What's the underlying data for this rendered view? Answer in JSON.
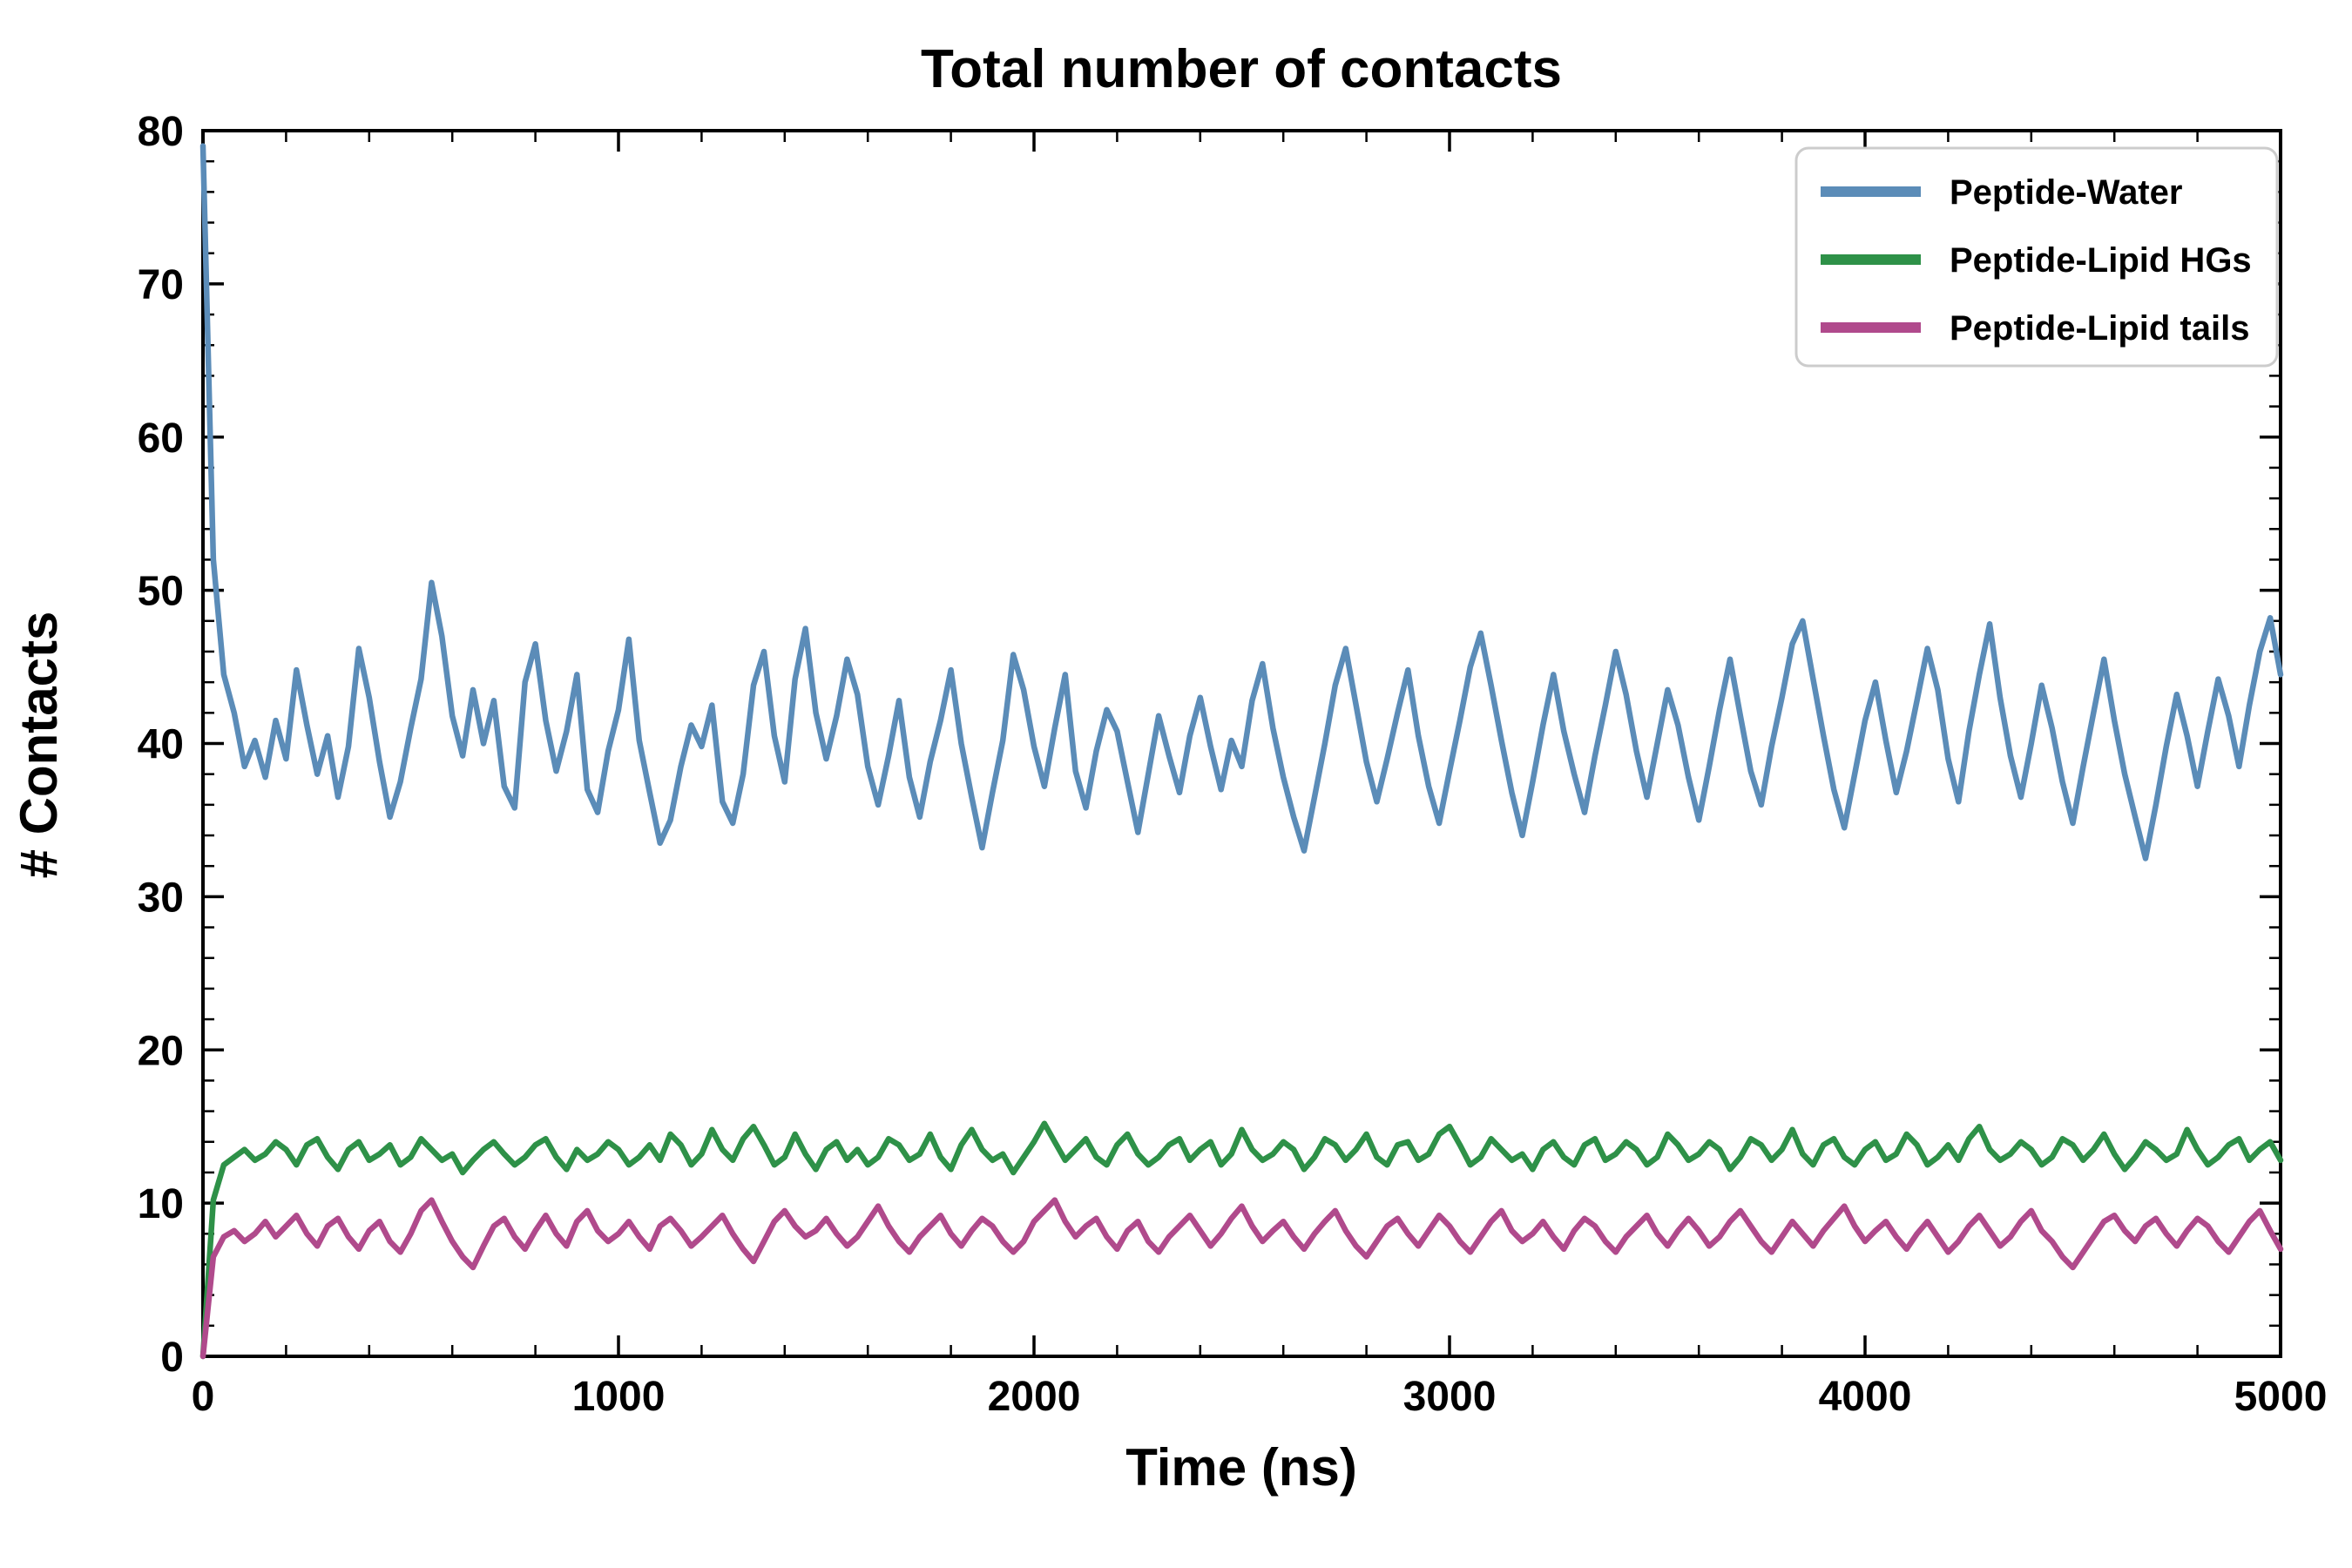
{
  "chart_data": {
    "type": "line",
    "title": "Total number of contacts",
    "xlabel": "Time (ns)",
    "ylabel": "# Contacts",
    "xlim": [
      0,
      5000
    ],
    "ylim": [
      0,
      80
    ],
    "xticks": [
      0,
      1000,
      2000,
      3000,
      4000,
      5000
    ],
    "yticks": [
      0,
      10,
      20,
      30,
      40,
      50,
      60,
      70,
      80
    ],
    "x_minor_step": 200,
    "y_minor_step": 2,
    "grid": false,
    "legend_position": "upper right",
    "x_step": 25,
    "frame_color": "#000000",
    "series": [
      {
        "name": "Peptide-Water",
        "color": "#5b8cb8",
        "values": [
          79,
          52,
          44.5,
          42,
          38.5,
          40.2,
          37.8,
          41.5,
          39,
          44.8,
          41.2,
          38,
          40.5,
          36.5,
          39.8,
          46.2,
          43,
          38.8,
          35.2,
          37.5,
          41,
          44.2,
          50.5,
          47,
          41.8,
          39.2,
          43.5,
          40,
          42.8,
          37.2,
          35.8,
          44,
          46.5,
          41.5,
          38.2,
          40.8,
          44.5,
          37,
          35.5,
          39.5,
          42.2,
          46.8,
          40.2,
          36.8,
          33.5,
          35,
          38.5,
          41.2,
          39.8,
          42.5,
          36.2,
          34.8,
          38,
          43.8,
          46,
          40.5,
          37.5,
          44.2,
          47.5,
          42,
          39,
          41.8,
          45.5,
          43.2,
          38.5,
          36,
          39.2,
          42.8,
          37.8,
          35.2,
          38.8,
          41.5,
          44.8,
          40,
          36.5,
          33.2,
          36.8,
          40.2,
          45.8,
          43.5,
          39.8,
          37.2,
          41,
          44.5,
          38.2,
          35.8,
          39.5,
          42.2,
          40.8,
          37.5,
          34.2,
          38,
          41.8,
          39.2,
          36.8,
          40.5,
          43,
          39.8,
          37,
          40.2,
          38.5,
          42.8,
          45.2,
          41,
          37.8,
          35.2,
          33,
          36.5,
          40,
          43.8,
          46.2,
          42.5,
          38.8,
          36.2,
          39,
          42,
          44.8,
          40.5,
          37.2,
          34.8,
          38.2,
          41.5,
          45,
          47.2,
          43.8,
          40.2,
          36.8,
          34,
          37.5,
          41.2,
          44.5,
          40.8,
          38,
          35.5,
          39.2,
          42.5,
          46,
          43.2,
          39.5,
          36.5,
          40,
          43.5,
          41.2,
          37.8,
          35,
          38.5,
          42.2,
          45.5,
          41.8,
          38.2,
          36,
          39.8,
          43,
          46.5,
          48,
          44.2,
          40.5,
          37,
          34.5,
          38,
          41.5,
          44,
          40.2,
          36.8,
          39.5,
          42.8,
          46.2,
          43.5,
          39,
          36.2,
          40.8,
          44.5,
          47.8,
          43,
          39.2,
          36.5,
          40,
          43.8,
          41,
          37.5,
          34.8,
          38.5,
          42,
          45.5,
          41.5,
          38,
          35.2,
          32.5,
          36,
          39.8,
          43.2,
          40.5,
          37.2,
          40.8,
          44.2,
          41.8,
          38.5,
          42.5,
          46,
          48.2,
          44.5
        ]
      },
      {
        "name": "Peptide-Lipid HGs",
        "color": "#2e9148",
        "values": [
          0,
          10.2,
          12.5,
          13,
          13.5,
          12.8,
          13.2,
          14,
          13.5,
          12.5,
          13.8,
          14.2,
          13,
          12.2,
          13.5,
          14,
          12.8,
          13.2,
          13.8,
          12.5,
          13,
          14.2,
          13.5,
          12.8,
          13.2,
          12,
          12.8,
          13.5,
          14,
          13.2,
          12.5,
          13,
          13.8,
          14.2,
          13,
          12.2,
          13.5,
          12.8,
          13.2,
          14,
          13.5,
          12.5,
          13,
          13.8,
          12.8,
          14.5,
          13.8,
          12.5,
          13.2,
          14.8,
          13.5,
          12.8,
          14.2,
          15,
          13.8,
          12.5,
          13,
          14.5,
          13.2,
          12.2,
          13.5,
          14,
          12.8,
          13.5,
          12.5,
          13,
          14.2,
          13.8,
          12.8,
          13.2,
          14.5,
          13,
          12.2,
          13.8,
          14.8,
          13.5,
          12.8,
          13.2,
          12,
          13,
          14,
          15.2,
          14,
          12.8,
          13.5,
          14.2,
          13,
          12.5,
          13.8,
          14.5,
          13.2,
          12.5,
          13,
          13.8,
          14.2,
          12.8,
          13.5,
          14,
          12.5,
          13.2,
          14.8,
          13.5,
          12.8,
          13.2,
          14,
          13.5,
          12.2,
          13,
          14.2,
          13.8,
          12.8,
          13.5,
          14.5,
          13,
          12.5,
          13.8,
          14,
          12.8,
          13.2,
          14.5,
          15,
          13.8,
          12.5,
          13,
          14.2,
          13.5,
          12.8,
          13.2,
          12.2,
          13.5,
          14,
          13,
          12.5,
          13.8,
          14.2,
          12.8,
          13.2,
          14,
          13.5,
          12.5,
          13,
          14.5,
          13.8,
          12.8,
          13.2,
          14,
          13.5,
          12.2,
          13,
          14.2,
          13.8,
          12.8,
          13.5,
          14.8,
          13.2,
          12.5,
          13.8,
          14.2,
          13,
          12.5,
          13.5,
          14,
          12.8,
          13.2,
          14.5,
          13.8,
          12.5,
          13,
          13.8,
          12.8,
          14.2,
          15,
          13.5,
          12.8,
          13.2,
          14,
          13.5,
          12.5,
          13,
          14.2,
          13.8,
          12.8,
          13.5,
          14.5,
          13.2,
          12.2,
          13,
          14,
          13.5,
          12.8,
          13.2,
          14.8,
          13.5,
          12.5,
          13,
          13.8,
          14.2,
          12.8,
          13.5,
          14,
          12.8
        ]
      },
      {
        "name": "Peptide-Lipid tails",
        "color": "#b04a8c",
        "values": [
          0,
          6.5,
          7.8,
          8.2,
          7.5,
          8,
          8.8,
          7.8,
          8.5,
          9.2,
          8,
          7.2,
          8.5,
          9,
          7.8,
          7,
          8.2,
          8.8,
          7.5,
          6.8,
          8,
          9.5,
          10.2,
          8.8,
          7.5,
          6.5,
          5.8,
          7.2,
          8.5,
          9,
          7.8,
          7,
          8.2,
          9.2,
          8,
          7.2,
          8.8,
          9.5,
          8.2,
          7.5,
          8,
          8.8,
          7.8,
          7,
          8.5,
          9,
          8.2,
          7.2,
          7.8,
          8.5,
          9.2,
          8,
          7,
          6.2,
          7.5,
          8.8,
          9.5,
          8.5,
          7.8,
          8.2,
          9,
          8,
          7.2,
          7.8,
          8.8,
          9.8,
          8.5,
          7.5,
          6.8,
          7.8,
          8.5,
          9.2,
          8,
          7.2,
          8.2,
          9,
          8.5,
          7.5,
          6.8,
          7.5,
          8.8,
          9.5,
          10.2,
          8.8,
          7.8,
          8.5,
          9,
          7.8,
          7,
          8.2,
          8.8,
          7.5,
          6.8,
          7.8,
          8.5,
          9.2,
          8.2,
          7.2,
          8,
          9,
          9.8,
          8.5,
          7.5,
          8.2,
          8.8,
          7.8,
          7,
          8,
          8.8,
          9.5,
          8.2,
          7.2,
          6.5,
          7.5,
          8.5,
          9,
          8,
          7.2,
          8.2,
          9.2,
          8.5,
          7.5,
          6.8,
          7.8,
          8.8,
          9.5,
          8.2,
          7.5,
          8,
          8.8,
          7.8,
          7,
          8.2,
          9,
          8.5,
          7.5,
          6.8,
          7.8,
          8.5,
          9.2,
          8,
          7.2,
          8.2,
          9,
          8.2,
          7.2,
          7.8,
          8.8,
          9.5,
          8.5,
          7.5,
          6.8,
          7.8,
          8.8,
          8,
          7.2,
          8.2,
          9,
          9.8,
          8.5,
          7.5,
          8.2,
          8.8,
          7.8,
          7,
          8,
          8.8,
          7.8,
          6.8,
          7.5,
          8.5,
          9.2,
          8.2,
          7.2,
          7.8,
          8.8,
          9.5,
          8.2,
          7.5,
          6.5,
          5.8,
          6.8,
          7.8,
          8.8,
          9.2,
          8.2,
          7.5,
          8.5,
          9,
          8,
          7.2,
          8.2,
          9,
          8.5,
          7.5,
          6.8,
          7.8,
          8.8,
          9.5,
          8.2,
          7
        ]
      }
    ]
  }
}
